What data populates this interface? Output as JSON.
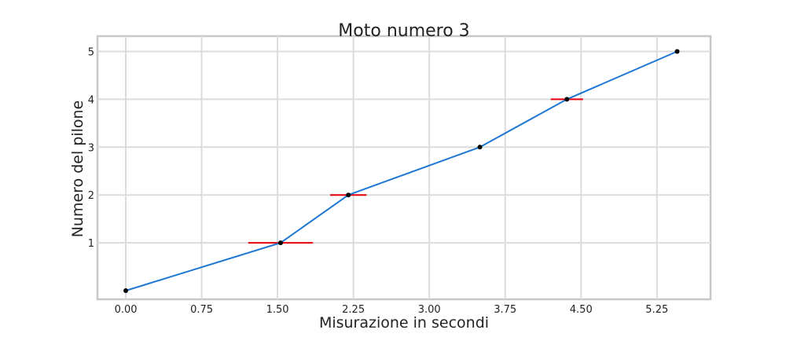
{
  "chart_data": {
    "type": "line",
    "title": "Moto numero 3",
    "xlabel": "Misurazione in secondi",
    "ylabel": "Numero del pilone",
    "xlim": [
      -0.28,
      5.78
    ],
    "ylim": [
      -0.18,
      5.32
    ],
    "x_ticks": [
      0.0,
      0.75,
      1.5,
      2.25,
      3.0,
      3.75,
      4.5,
      5.25
    ],
    "x_tick_labels": [
      "0.00",
      "0.75",
      "1.50",
      "2.25",
      "3.00",
      "3.75",
      "4.50",
      "5.25"
    ],
    "y_ticks": [
      1,
      2,
      3,
      4,
      5
    ],
    "y_tick_labels": [
      "1",
      "2",
      "3",
      "4",
      "5"
    ],
    "grid": true,
    "series": [
      {
        "color": "#1f77d4",
        "marker_color": "#000000",
        "x": [
          0.0,
          1.53,
          2.2,
          3.5,
          4.36,
          5.45
        ],
        "y": [
          0,
          1,
          2,
          3,
          4,
          5
        ],
        "xerr": [
          0.0,
          0.32,
          0.18,
          0.0,
          0.16,
          0.0
        ],
        "error_color": "#e8000b"
      }
    ]
  }
}
